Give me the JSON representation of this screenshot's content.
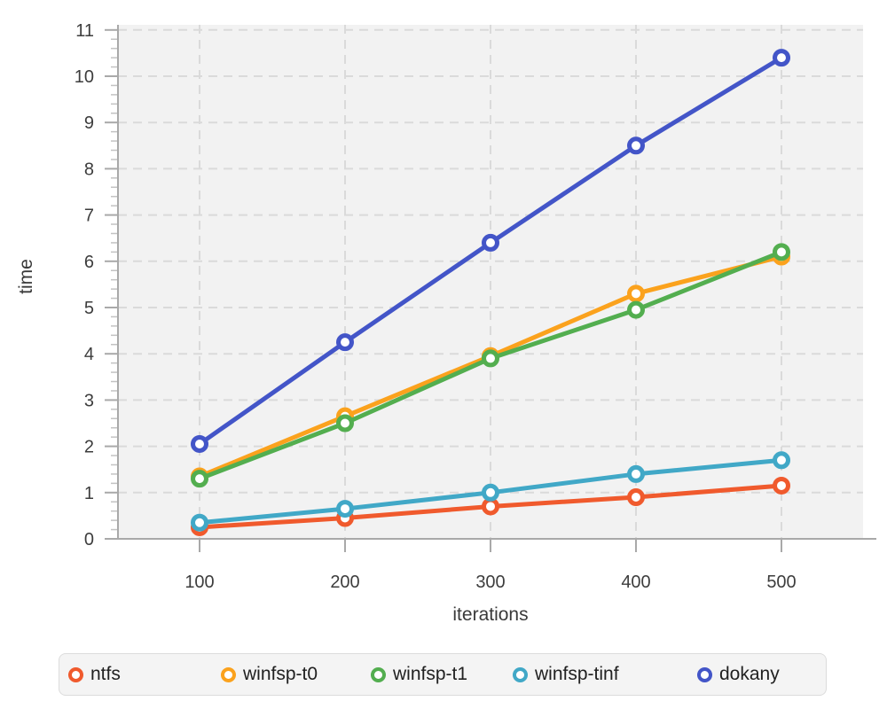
{
  "figure": {
    "background": "#ffffff",
    "plot_background": "#f2f2f2",
    "grid_color": "#dadada",
    "axis_line_color": "#a9a9a9",
    "minor_tick_color": "#c3c3c3",
    "tick_label_color": "#3d3d3d",
    "axis_title_color": "#3a3a3a",
    "legend_text_color": "#212121"
  },
  "chart_data": {
    "type": "line",
    "title": "",
    "xlabel": "iterations",
    "ylabel": "time",
    "x": [
      100,
      200,
      300,
      400,
      500
    ],
    "xticks": [
      100,
      200,
      300,
      400,
      500
    ],
    "yticks": [
      0,
      1,
      2,
      3,
      4,
      5,
      6,
      7,
      8,
      9,
      10,
      11
    ],
    "y_minor_step": 0.2,
    "xlim": [
      44,
      556
    ],
    "ylim": [
      0,
      11.1
    ],
    "grid": true,
    "grid_style": "dashed",
    "marker": "open-circle",
    "legend_position": "bottom",
    "series": [
      {
        "name": "ntfs",
        "color": "#f05a2d",
        "values": [
          0.25,
          0.45,
          0.7,
          0.9,
          1.15
        ]
      },
      {
        "name": "winfsp-t0",
        "color": "#fba21d",
        "values": [
          1.35,
          2.65,
          3.95,
          5.3,
          6.1
        ]
      },
      {
        "name": "winfsp-t1",
        "color": "#53ae4f",
        "values": [
          1.3,
          2.5,
          3.9,
          4.95,
          6.2
        ]
      },
      {
        "name": "winfsp-tinf",
        "color": "#41a8c7",
        "values": [
          0.35,
          0.65,
          1.0,
          1.4,
          1.7
        ]
      },
      {
        "name": "dokany",
        "color": "#4355c8",
        "values": [
          2.05,
          4.25,
          6.4,
          8.5,
          10.4
        ]
      }
    ]
  }
}
